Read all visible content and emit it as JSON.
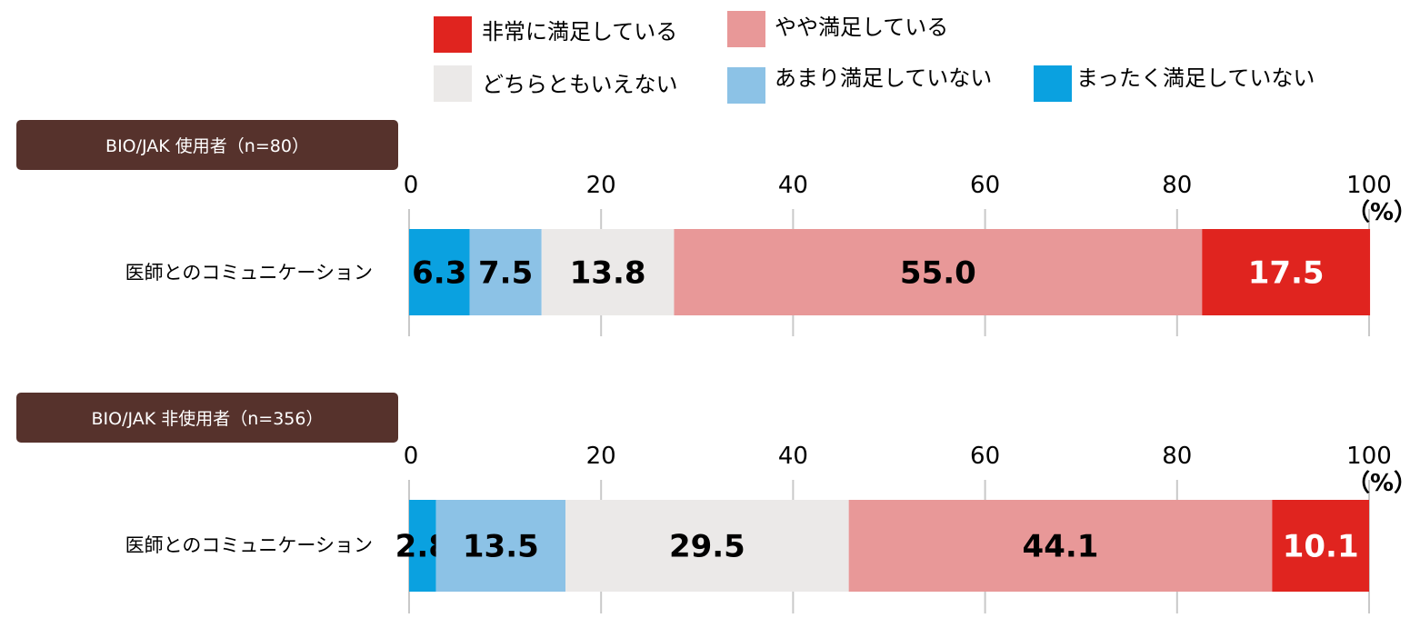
{
  "chart_data": {
    "type": "bar",
    "orientation": "horizontal",
    "stacked": true,
    "unit": "（%）",
    "xlim": [
      0,
      100
    ],
    "ticks": [
      "0",
      "20",
      "40",
      "60",
      "80",
      "100"
    ],
    "grid": true,
    "legend": {
      "placement": "top",
      "items": [
        {
          "label": "非常に満足している",
          "color": "#e0241f"
        },
        {
          "label": "やや満足している",
          "color": "#e89898"
        },
        {
          "label": "どちらともいえない",
          "color": "#ebe9e8"
        },
        {
          "label": "あまり満足していない",
          "color": "#8cc2e6"
        },
        {
          "label": "まったく満足していない",
          "color": "#0aa1e0"
        }
      ]
    },
    "series_order": [
      "まったく満足していない",
      "あまり満足していない",
      "どちらともいえない",
      "やや満足している",
      "非常に満足している"
    ],
    "colors": {
      "まったく満足していない": "#0aa1e0",
      "あまり満足していない": "#8cc2e6",
      "どちらともいえない": "#ebe9e8",
      "やや満足している": "#e89898",
      "非常に満足している": "#e0241f"
    },
    "label_colors": {
      "まったく満足していない": "#000000",
      "あまり満足していない": "#000000",
      "どちらともいえない": "#000000",
      "やや満足している": "#000000",
      "非常に満足している": "#ffffff"
    },
    "groups": [
      {
        "title": "BIO/JAK 使用者（n=80）",
        "category": "医師とのコミュニケーション",
        "values": [
          6.3,
          7.5,
          13.8,
          55.0,
          17.5
        ],
        "labels": [
          "6.3",
          "7.5",
          "13.8",
          "55.0",
          "17.5"
        ]
      },
      {
        "title": "BIO/JAK 非使用者（n=356）",
        "category": "医師とのコミュニケーション",
        "values": [
          2.8,
          13.5,
          29.5,
          44.1,
          10.1
        ],
        "labels": [
          "2.8",
          "13.5",
          "29.5",
          "44.1",
          "10.1"
        ]
      }
    ],
    "title_box_color": "#56322c"
  }
}
